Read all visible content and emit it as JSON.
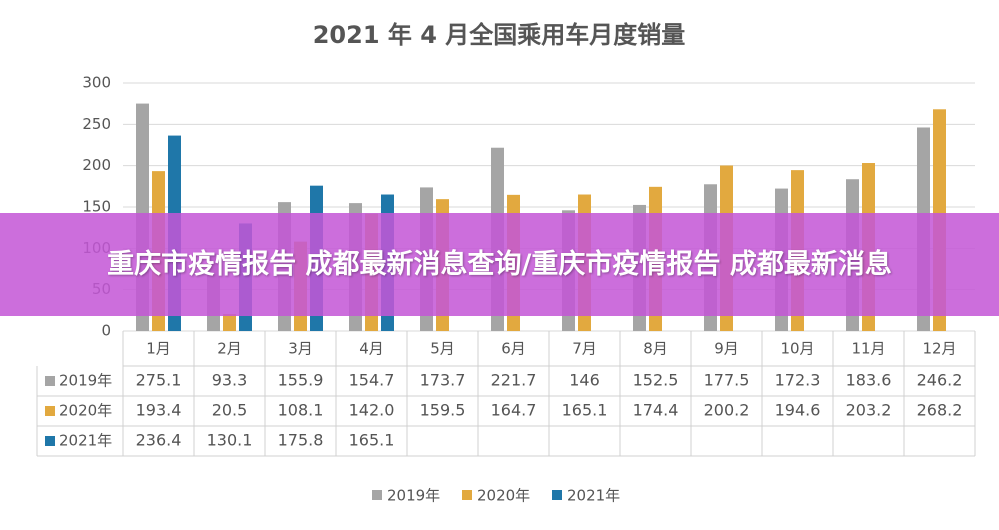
{
  "chart_data": {
    "type": "bar",
    "title": "2021 年 4 月全国乘用车月度销量",
    "categories": [
      "1月",
      "2月",
      "3月",
      "4月",
      "5月",
      "6月",
      "7月",
      "8月",
      "9月",
      "10月",
      "11月",
      "12月"
    ],
    "series": [
      {
        "name": "2019年",
        "color": "#a5a5a5",
        "values": [
          275.1,
          93.3,
          155.9,
          154.7,
          173.7,
          221.7,
          146,
          152.5,
          177.5,
          172.3,
          183.6,
          246.2
        ],
        "value_labels": [
          "275.1",
          "93.3",
          "155.9",
          "154.7",
          "173.7",
          "221.7",
          "146",
          "152.5",
          "177.5",
          "172.3",
          "183.6",
          "246.2"
        ]
      },
      {
        "name": "2020年",
        "color": "#e2a93f",
        "values": [
          193.4,
          20.5,
          108.1,
          142.0,
          159.5,
          164.7,
          165.1,
          174.4,
          200.2,
          194.6,
          203.2,
          268.2
        ],
        "value_labels": [
          "193.4",
          "20.5",
          "108.1",
          "142.0",
          "159.5",
          "164.7",
          "165.1",
          "174.4",
          "200.2",
          "194.6",
          "203.2",
          "268.2"
        ]
      },
      {
        "name": "2021年",
        "color": "#1f77a9",
        "values": [
          236.4,
          130.1,
          175.8,
          165.1,
          null,
          null,
          null,
          null,
          null,
          null,
          null,
          null
        ],
        "value_labels": [
          "236.4",
          "130.1",
          "175.8",
          "165.1",
          null,
          null,
          null,
          null,
          null,
          null,
          null,
          null
        ]
      }
    ],
    "ylim": [
      0,
      300
    ],
    "yticks": [
      0,
      50,
      100,
      150,
      200,
      250,
      300
    ],
    "grid": true,
    "legend": "bottom"
  },
  "banner": "重庆市疫情报告 成都最新消息查询/重庆市疫情报告 成都最新消息"
}
